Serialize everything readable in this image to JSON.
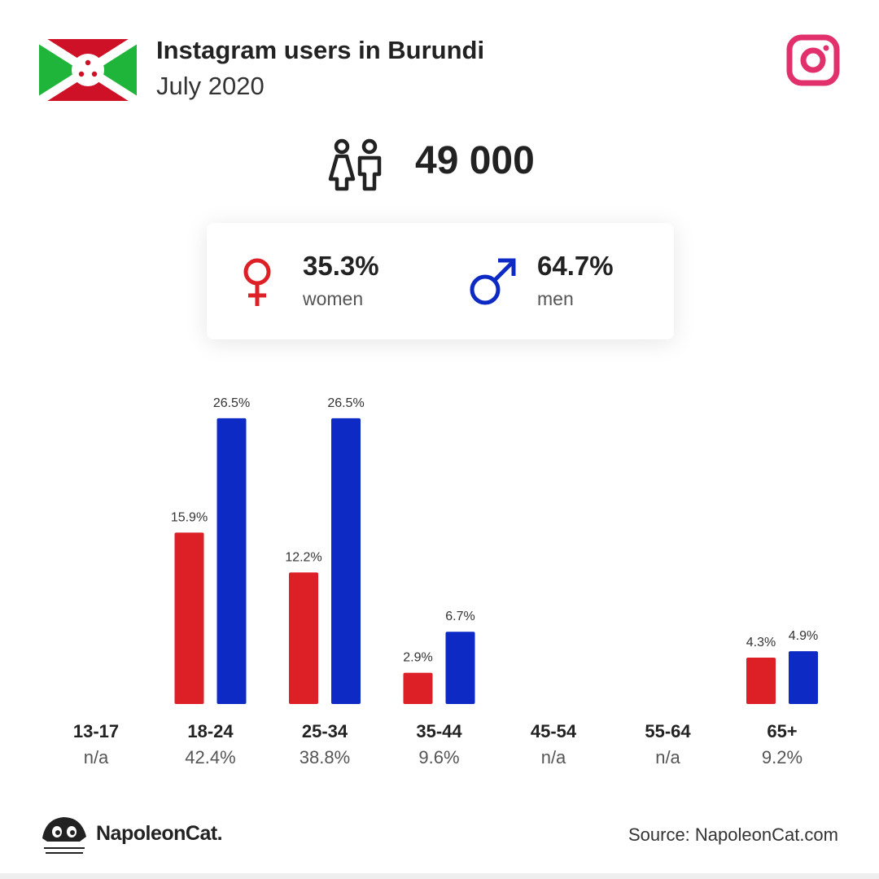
{
  "header": {
    "title": "Instagram users in Burundi",
    "subtitle": "July 2020",
    "total": "49 000"
  },
  "gender": {
    "women_pct": "35.3%",
    "women_label": "women",
    "men_pct": "64.7%",
    "men_label": "men"
  },
  "chart_data": {
    "type": "bar",
    "categories": [
      "13-17",
      "18-24",
      "25-34",
      "35-44",
      "45-54",
      "55-64",
      "65+"
    ],
    "category_totals": [
      "n/a",
      "42.4%",
      "38.8%",
      "9.6%",
      "n/a",
      "n/a",
      "9.2%"
    ],
    "series": [
      {
        "name": "women",
        "color": "#dd1f26",
        "values": [
          null,
          15.9,
          12.2,
          2.9,
          null,
          null,
          4.3
        ],
        "value_labels": [
          null,
          "15.9%",
          "12.2%",
          "2.9%",
          null,
          null,
          "4.3%"
        ]
      },
      {
        "name": "men",
        "color": "#0e2ac4",
        "values": [
          null,
          26.5,
          26.5,
          6.7,
          null,
          null,
          4.9
        ],
        "value_labels": [
          null,
          "26.5%",
          "26.5%",
          "6.7%",
          null,
          null,
          "4.9%"
        ]
      }
    ]
  },
  "footer": {
    "brand": "NapoleonCat.",
    "source": "Source: NapoleonCat.com"
  }
}
